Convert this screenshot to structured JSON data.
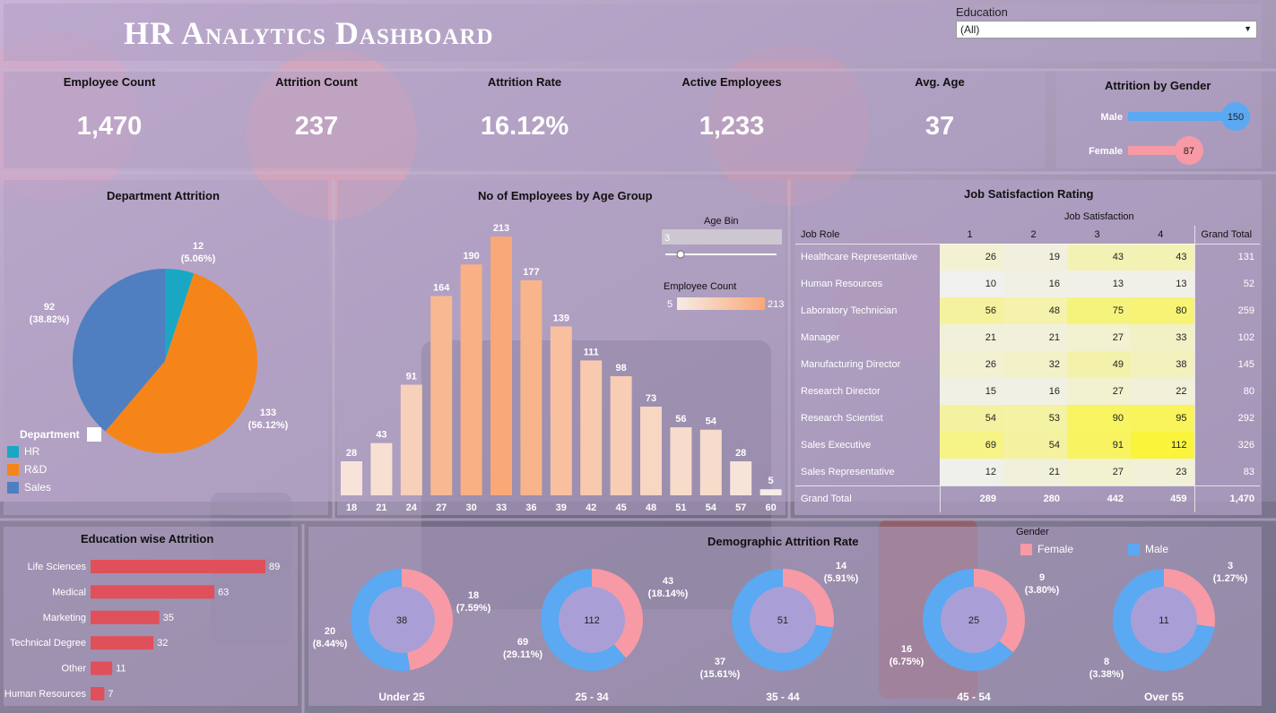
{
  "header": {
    "title": "HR Analytics Dashboard"
  },
  "filter": {
    "label": "Education",
    "value": "(All)"
  },
  "kpis": [
    {
      "label": "Employee Count",
      "value": "1,470"
    },
    {
      "label": "Attrition Count",
      "value": "237"
    },
    {
      "label": "Attrition Rate",
      "value": "16.12%"
    },
    {
      "label": "Active Employees",
      "value": "1,233"
    },
    {
      "label": "Avg. Age",
      "value": "37"
    }
  ],
  "colors": {
    "hr": "#1aa7c4",
    "rd": "#f68519",
    "sales": "#4f7fc0",
    "female": "#f79aa5",
    "male": "#5aa9f2",
    "edu_bar": "#e0505a",
    "donut_center": "#a99fd6"
  },
  "chart_data": [
    {
      "type": "bar",
      "orientation": "horizontal",
      "title": "Attrition by Gender",
      "categories": [
        "Male",
        "Female"
      ],
      "values": [
        150,
        87
      ]
    },
    {
      "type": "pie",
      "title": "Department Attrition",
      "legend_title": "Department",
      "categories": [
        "HR",
        "R&D",
        "Sales"
      ],
      "values": [
        12,
        133,
        92
      ],
      "labels": [
        [
          "12",
          "(5.06%)"
        ],
        [
          "133",
          "(56.12%)"
        ],
        [
          "92",
          "(38.82%)"
        ]
      ],
      "legend_position": "bottom-left"
    },
    {
      "type": "bar",
      "title": "No of Employees by Age Group",
      "categories": [
        "18",
        "21",
        "24",
        "27",
        "30",
        "33",
        "36",
        "39",
        "42",
        "45",
        "48",
        "51",
        "54",
        "57",
        "60"
      ],
      "values": [
        28,
        43,
        91,
        164,
        190,
        213,
        177,
        139,
        111,
        98,
        73,
        56,
        54,
        28,
        5
      ],
      "age_bin": {
        "label": "Age Bin",
        "value": "3"
      },
      "color_legend": {
        "label": "Employee Count",
        "min": "5",
        "max": "213"
      },
      "ylim": [
        0,
        213
      ]
    },
    {
      "type": "table",
      "title": "Job Satisfaction Rating",
      "column_group": "Job Satisfaction",
      "row_header": "Job Role",
      "columns": [
        "1",
        "2",
        "3",
        "4"
      ],
      "total_label": "Grand Total",
      "rows": [
        {
          "role": "Healthcare Representative",
          "values": [
            26,
            19,
            43,
            43
          ],
          "total": "131"
        },
        {
          "role": "Human Resources",
          "values": [
            10,
            16,
            13,
            13
          ],
          "total": "52"
        },
        {
          "role": "Laboratory Technician",
          "values": [
            56,
            48,
            75,
            80
          ],
          "total": "259"
        },
        {
          "role": "Manager",
          "values": [
            21,
            21,
            27,
            33
          ],
          "total": "102"
        },
        {
          "role": "Manufacturing Director",
          "values": [
            26,
            32,
            49,
            38
          ],
          "total": "145"
        },
        {
          "role": "Research Director",
          "values": [
            15,
            16,
            27,
            22
          ],
          "total": "80"
        },
        {
          "role": "Research Scientist",
          "values": [
            54,
            53,
            90,
            95
          ],
          "total": "292"
        },
        {
          "role": "Sales Executive",
          "values": [
            69,
            54,
            91,
            112
          ],
          "total": "326"
        },
        {
          "role": "Sales Representative",
          "values": [
            12,
            21,
            27,
            23
          ],
          "total": "83"
        }
      ],
      "totals": [
        "289",
        "280",
        "442",
        "459",
        "1,470"
      ]
    },
    {
      "type": "bar",
      "orientation": "horizontal",
      "title": "Education wise Attrition",
      "categories": [
        "Life Sciences",
        "Medical",
        "Marketing",
        "Technical Degree",
        "Other",
        "Human Resources"
      ],
      "values": [
        89,
        63,
        35,
        32,
        11,
        7
      ]
    },
    {
      "type": "pie",
      "title": "Demographic Attrition Rate",
      "legend_title": "Gender",
      "series_names": [
        "Female",
        "Male"
      ],
      "groups": [
        {
          "name": "Under 25",
          "total": "38",
          "female": 18,
          "male": 20,
          "female_label": [
            "18",
            "(7.59%)"
          ],
          "male_label": [
            "20",
            "(8.44%)"
          ]
        },
        {
          "name": "25 - 34",
          "total": "112",
          "female": 43,
          "male": 69,
          "female_label": [
            "43",
            "(18.14%)"
          ],
          "male_label": [
            "69",
            "(29.11%)"
          ]
        },
        {
          "name": "35 - 44",
          "total": "51",
          "female": 14,
          "male": 37,
          "female_label": [
            "14",
            "(5.91%)"
          ],
          "male_label": [
            "37",
            "(15.61%)"
          ]
        },
        {
          "name": "45 - 54",
          "total": "25",
          "female": 9,
          "male": 16,
          "female_label": [
            "9",
            "(3.80%)"
          ],
          "male_label": [
            "16",
            "(6.75%)"
          ]
        },
        {
          "name": "Over 55",
          "total": "11",
          "female": 3,
          "male": 8,
          "female_label": [
            "3",
            "(1.27%)"
          ],
          "male_label": [
            "8",
            "(3.38%)"
          ]
        }
      ],
      "legend_position": "top-right"
    }
  ]
}
